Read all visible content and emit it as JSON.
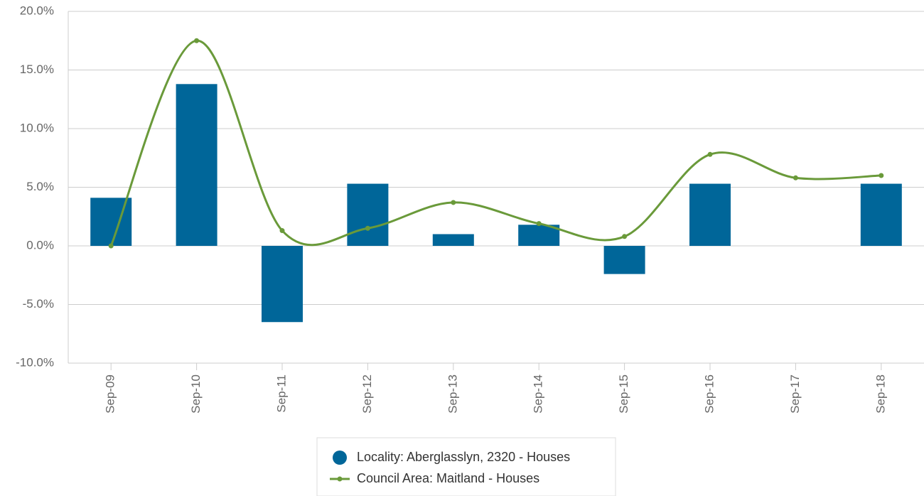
{
  "chart_data": {
    "type": "combo",
    "categories": [
      "Sep-09",
      "Sep-10",
      "Sep-11",
      "Sep-12",
      "Sep-13",
      "Sep-14",
      "Sep-15",
      "Sep-16",
      "Sep-17",
      "Sep-18"
    ],
    "series": [
      {
        "name": "Locality: Aberglasslyn, 2320 - Houses",
        "type": "bar",
        "color": "#006699",
        "values": [
          4.1,
          13.8,
          -6.5,
          5.3,
          1.0,
          1.8,
          -2.4,
          5.3,
          null,
          5.3
        ]
      },
      {
        "name": "Council Area: Maitland - Houses",
        "type": "line",
        "color": "#6a9a3a",
        "values": [
          0.0,
          17.5,
          1.3,
          1.5,
          3.7,
          1.9,
          0.8,
          7.8,
          5.8,
          6.0
        ]
      }
    ],
    "ylim": [
      -10,
      20
    ],
    "yticks": [
      {
        "value": -10,
        "label": "-10.0%"
      },
      {
        "value": -5,
        "label": "-5.0%"
      },
      {
        "value": 0,
        "label": "0.0%"
      },
      {
        "value": 5,
        "label": "5.0%"
      },
      {
        "value": 10,
        "label": "10.0%"
      },
      {
        "value": 15,
        "label": "15.0%"
      },
      {
        "value": 20,
        "label": "20.0%"
      }
    ],
    "grid": true
  }
}
